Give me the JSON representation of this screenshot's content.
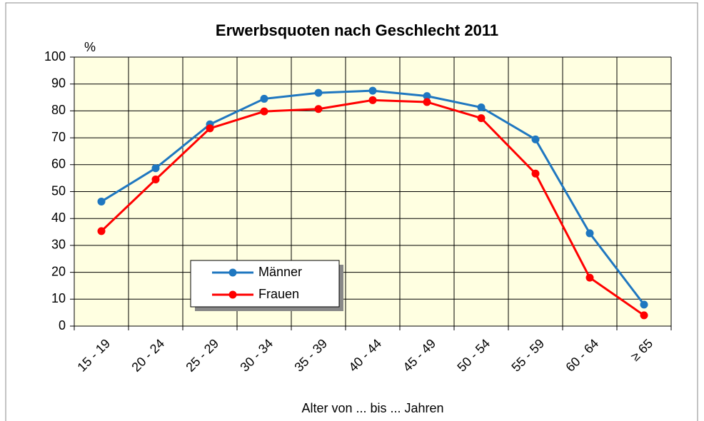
{
  "chart_data": {
    "type": "line",
    "title": "Erwerbsquoten nach Geschlecht 2011",
    "y_label": "%",
    "x_label": "Alter von ... bis ... Jahren",
    "categories": [
      "15 - 19",
      "20 - 24",
      "25 - 29",
      "30 - 34",
      "35 - 39",
      "40 - 44",
      "45 - 49",
      "50 - 54",
      "55 - 59",
      "60 - 64",
      "≥ 65"
    ],
    "series": [
      {
        "name": "Männer",
        "color": "#1f77c0",
        "values": [
          46.3,
          58.7,
          75,
          84.5,
          86.7,
          87.5,
          85.5,
          81.3,
          69.4,
          34.5,
          8
        ]
      },
      {
        "name": "Frauen",
        "color": "#ff0000",
        "values": [
          35.3,
          54.5,
          73.5,
          79.8,
          80.7,
          84,
          83.3,
          77.3,
          56.7,
          18,
          4
        ]
      }
    ],
    "ylim": [
      0,
      100
    ],
    "yticks": [
      0,
      10,
      20,
      30,
      40,
      50,
      60,
      70,
      80,
      90,
      100
    ],
    "grid": true
  }
}
